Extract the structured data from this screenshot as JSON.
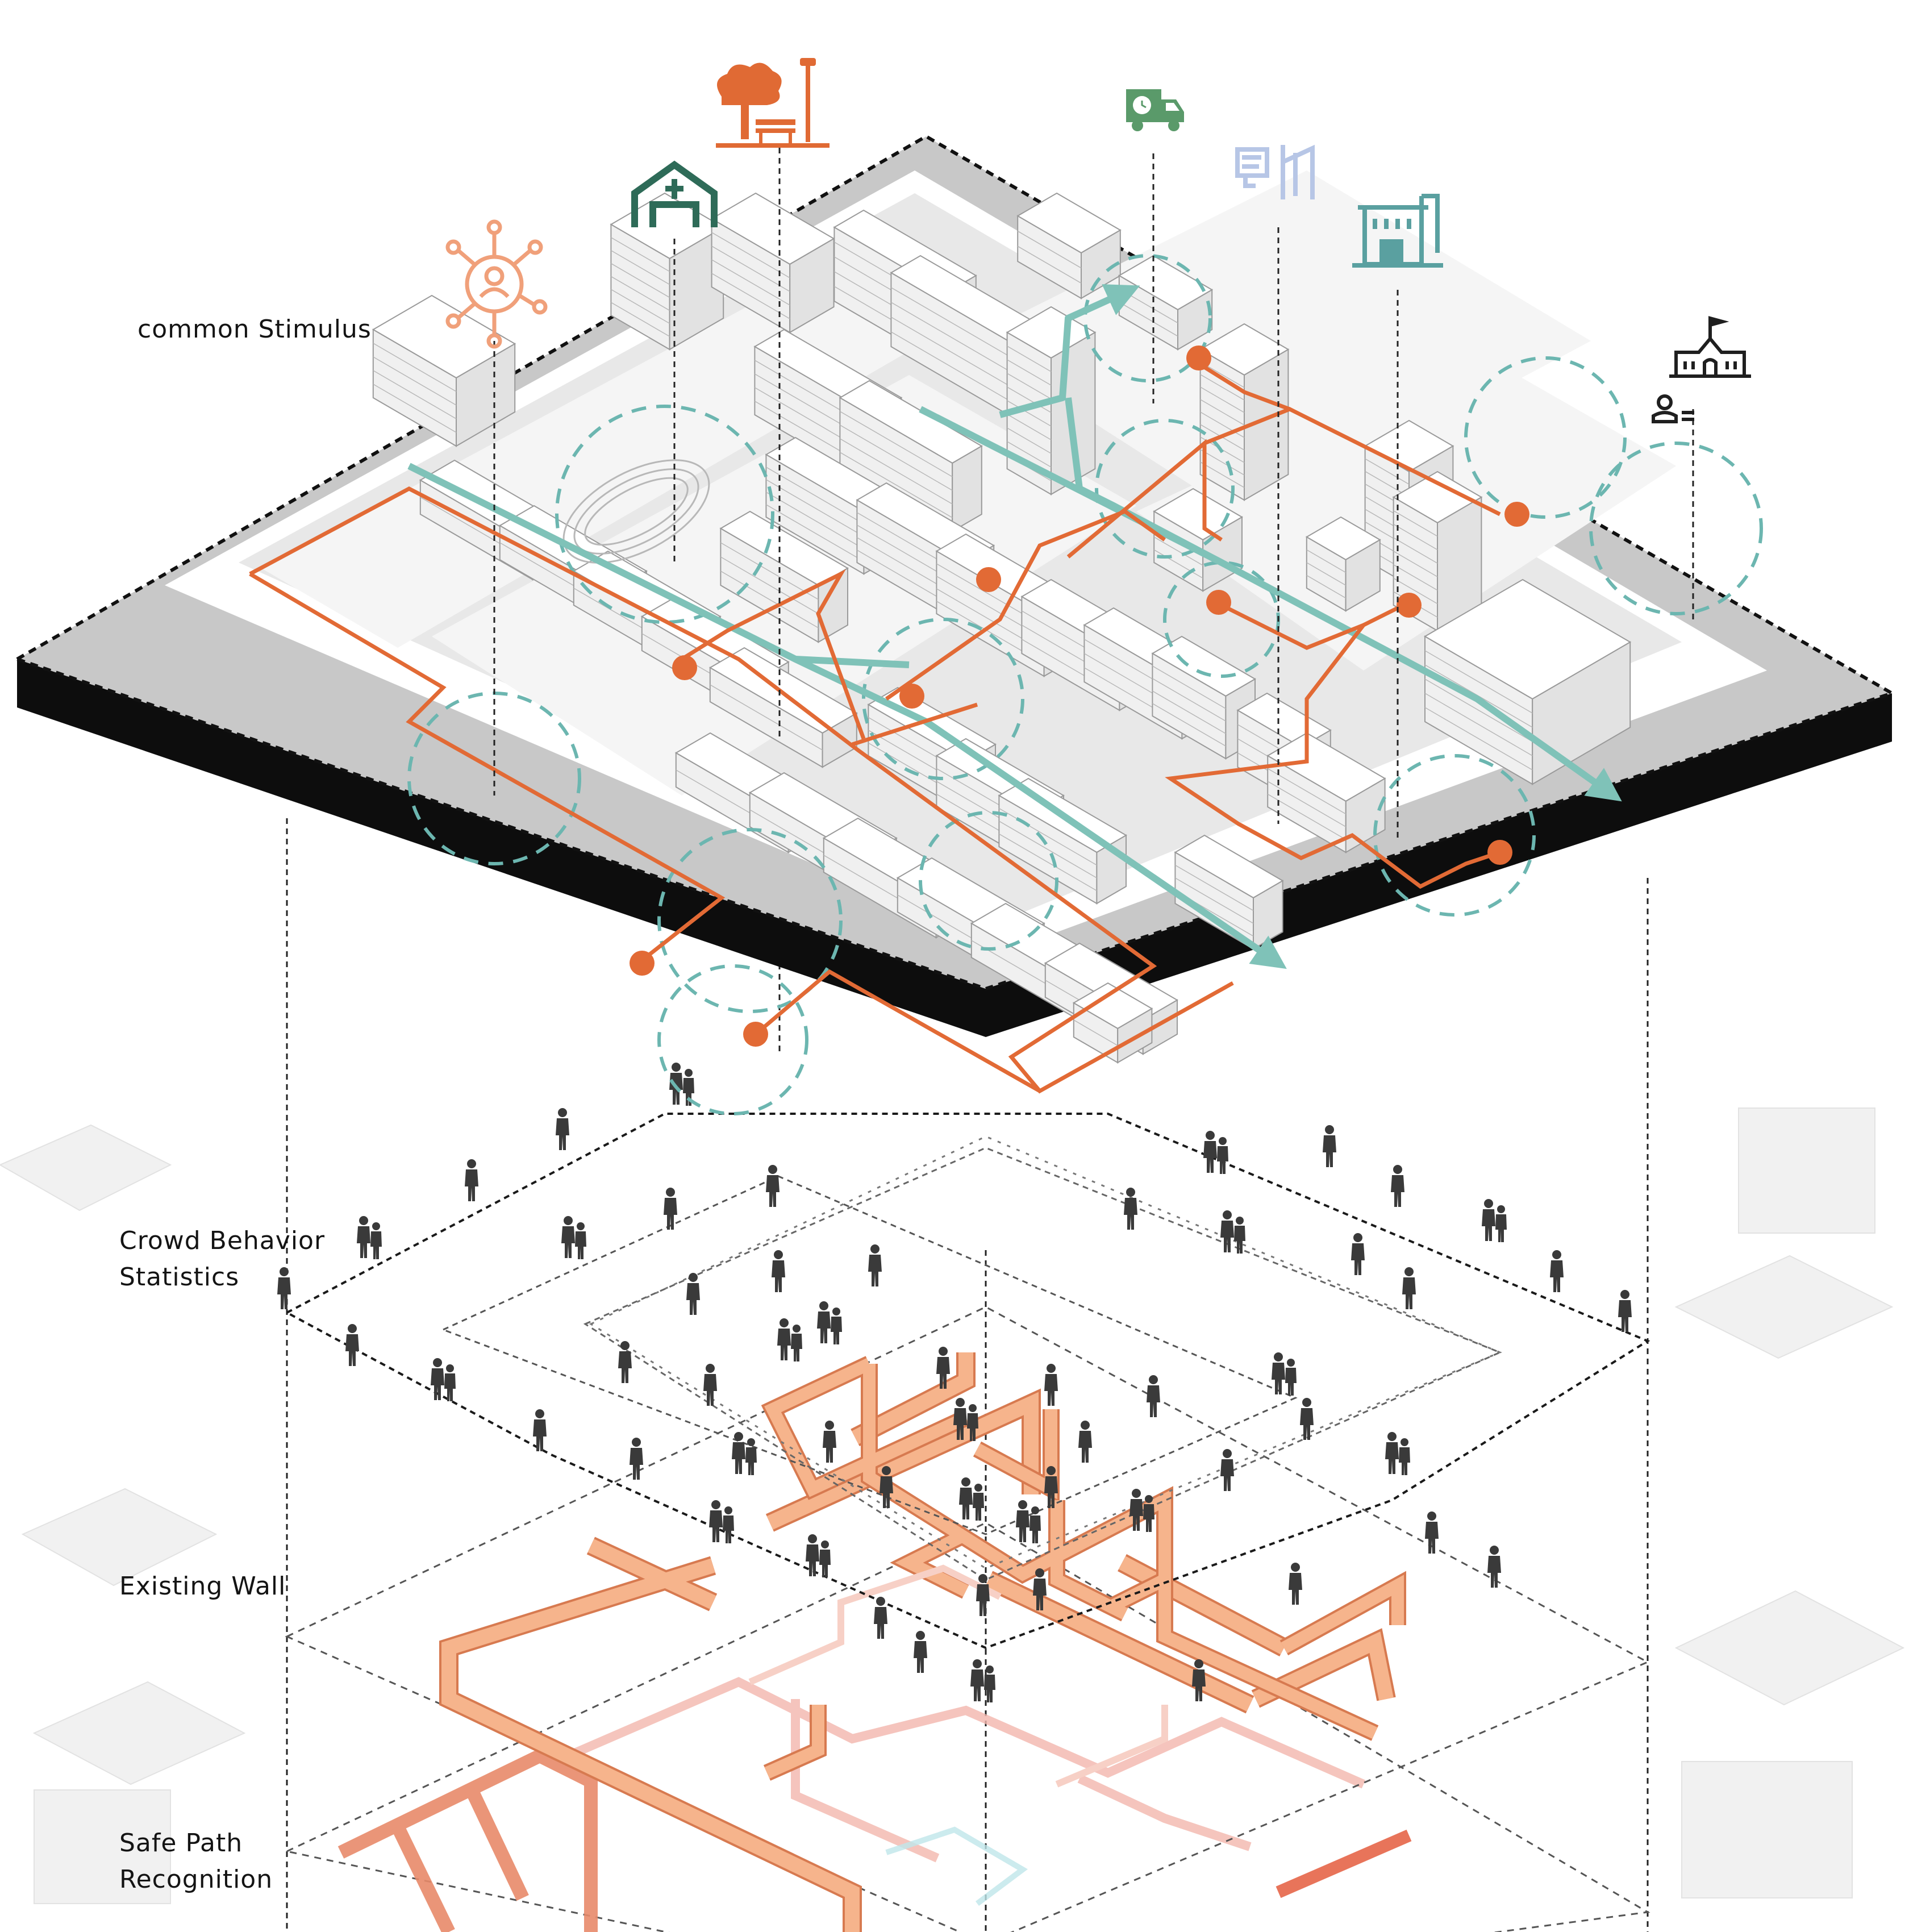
{
  "labels": {
    "common_stimulus": "common Stimulus",
    "crowd_behavior": "Crowd Behavior\nStatistics",
    "existing_wall": "Existing Wall",
    "safe_path": "Safe Path\nRecognition"
  },
  "icons": [
    {
      "name": "social-network-icon",
      "color": "#f0a07a"
    },
    {
      "name": "clinic-icon",
      "color": "#2e6b58"
    },
    {
      "name": "park-bench-tree-icon",
      "color": "#e06a34"
    },
    {
      "name": "delivery-truck-icon",
      "color": "#5a9a6a"
    },
    {
      "name": "bus-stop-sign-icon",
      "color": "#b7c6e6"
    },
    {
      "name": "market-building-icon",
      "color": "#5aa0a0"
    },
    {
      "name": "school-icon",
      "color": "#1f1f1f"
    },
    {
      "name": "person-list-icon",
      "color": "#1f1f1f"
    }
  ],
  "colors": {
    "route_orange": "#e26a35",
    "route_teal": "#7fc2b8",
    "wall_orange": "#f6b48c",
    "slab_top": "#c8c8c8",
    "slab_edge": "#0d0d0d",
    "people": "#3a3a3a"
  }
}
